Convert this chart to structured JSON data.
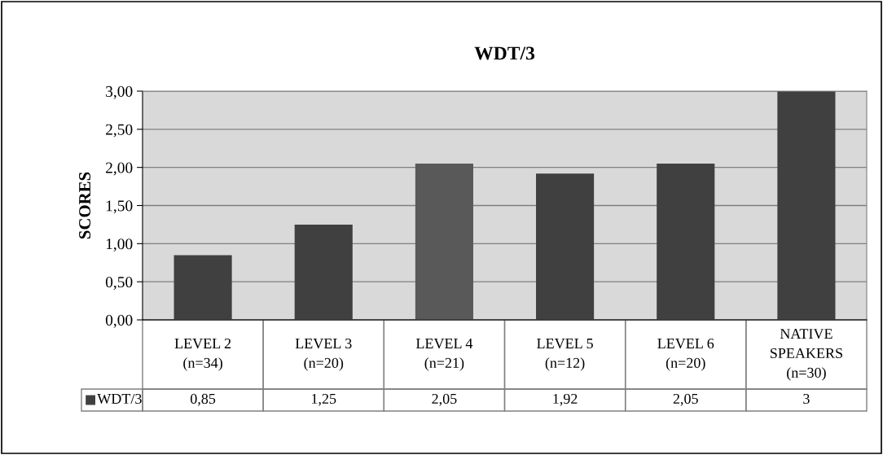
{
  "chart_data": {
    "type": "bar",
    "title": "WDT/3",
    "ylabel": "SCORES",
    "categories": [
      "LEVEL 2\n(n=34)",
      "LEVEL 3\n(n=20)",
      "LEVEL 4\n(n=21)",
      "LEVEL 5\n(n=12)",
      "LEVEL 6\n(n=20)",
      "NATIVE\nSPEAKERS\n(n=30)"
    ],
    "series": [
      {
        "name": "WDT/3",
        "color": "#404040",
        "colors": [
          "#404040",
          "#404040",
          "#595959",
          "#404040",
          "#404040",
          "#404040"
        ],
        "values": [
          0.85,
          1.25,
          2.05,
          1.92,
          2.05,
          3
        ],
        "value_labels": [
          "0,85",
          "1,25",
          "2,05",
          "1,92",
          "2,05",
          "3"
        ]
      }
    ],
    "ylim": [
      0,
      3
    ],
    "yticks": [
      {
        "value": 0,
        "label": "0,00"
      },
      {
        "value": 0.5,
        "label": "0,50"
      },
      {
        "value": 1,
        "label": "1,00"
      },
      {
        "value": 1.5,
        "label": "1,50"
      },
      {
        "value": 2,
        "label": "2,00"
      },
      {
        "value": 2.5,
        "label": "2,50"
      },
      {
        "value": 3,
        "label": "3,00"
      }
    ],
    "grid": "y",
    "legend": "bottom"
  }
}
